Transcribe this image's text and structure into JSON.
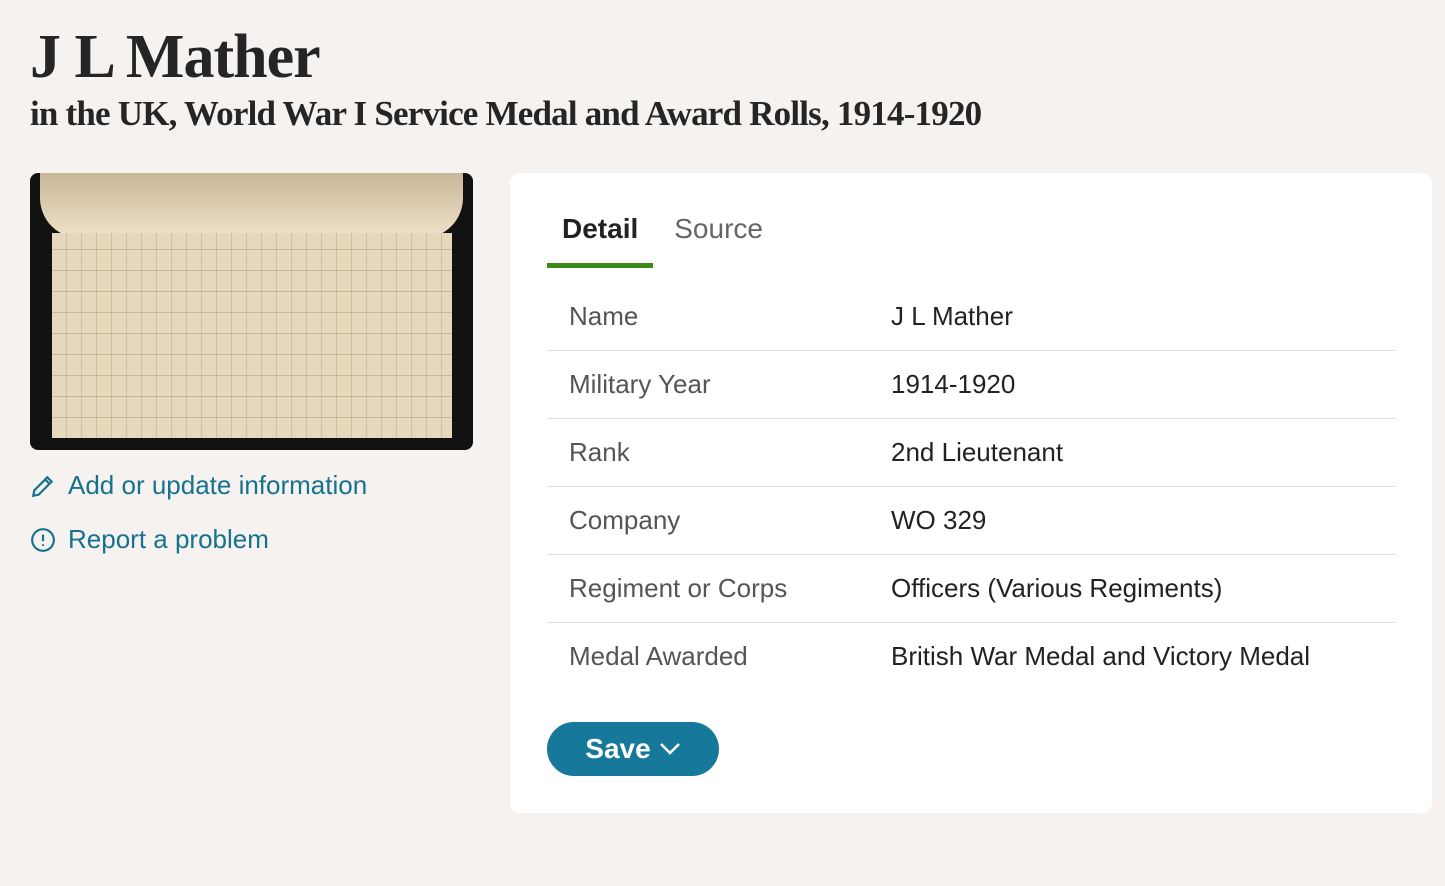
{
  "title": "J L Mather",
  "subtitle": "in the UK, World War I Service Medal and Award Rolls, 1914-1920",
  "links": {
    "add": "Add or update information",
    "report": "Report a problem"
  },
  "tabs": [
    "Detail",
    "Source"
  ],
  "fields": [
    {
      "label": "Name",
      "value": "J L Mather"
    },
    {
      "label": "Military Year",
      "value": "1914-1920"
    },
    {
      "label": "Rank",
      "value": "2nd Lieutenant"
    },
    {
      "label": "Company",
      "value": "WO 329"
    },
    {
      "label": "Regiment or Corps",
      "value": "Officers (Various Regiments)"
    },
    {
      "label": "Medal Awarded",
      "value": "British War Medal and Victory Medal"
    }
  ],
  "save_label": "Save",
  "colors": {
    "link": "#16728f",
    "accent_tab": "#3a8a17",
    "button": "#16789a"
  }
}
